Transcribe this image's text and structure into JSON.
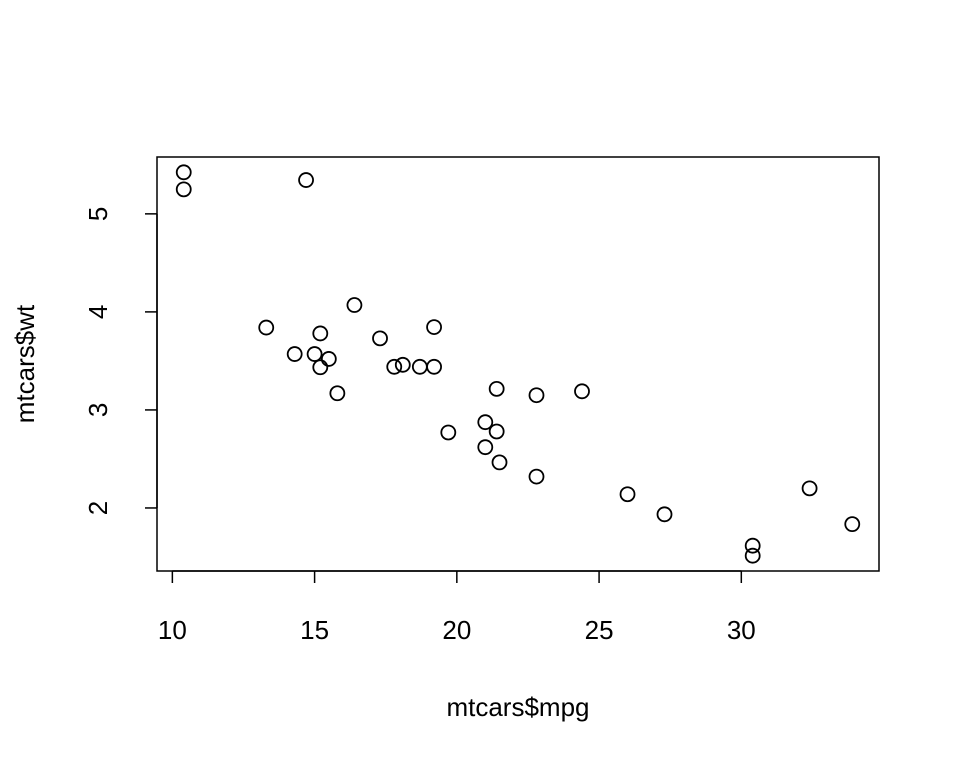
{
  "chart_data": {
    "type": "scatter",
    "xlabel": "mtcars$mpg",
    "ylabel": "mtcars$wt",
    "x": [
      21.0,
      21.0,
      22.8,
      21.4,
      18.7,
      18.1,
      14.3,
      24.4,
      22.8,
      19.2,
      17.8,
      16.4,
      17.3,
      15.2,
      10.4,
      10.4,
      14.7,
      32.4,
      30.4,
      33.9,
      21.5,
      15.5,
      15.2,
      13.3,
      19.2,
      27.3,
      26.0,
      30.4,
      15.8,
      19.7,
      15.0,
      21.4
    ],
    "values": [
      2.62,
      2.875,
      2.32,
      3.215,
      3.44,
      3.46,
      3.57,
      3.19,
      3.15,
      3.44,
      3.44,
      4.07,
      3.73,
      3.78,
      5.25,
      5.424,
      5.345,
      2.2,
      1.615,
      1.835,
      2.465,
      3.52,
      3.435,
      3.84,
      3.845,
      1.935,
      2.14,
      1.513,
      3.17,
      2.77,
      3.57,
      2.78
    ],
    "color": "#000000",
    "xlim": [
      9.46,
      34.84
    ],
    "ylim": [
      1.357,
      5.58
    ],
    "xticks": [
      10,
      15,
      20,
      25,
      30
    ],
    "yticks": [
      2,
      3,
      4,
      5
    ],
    "grid": false
  }
}
